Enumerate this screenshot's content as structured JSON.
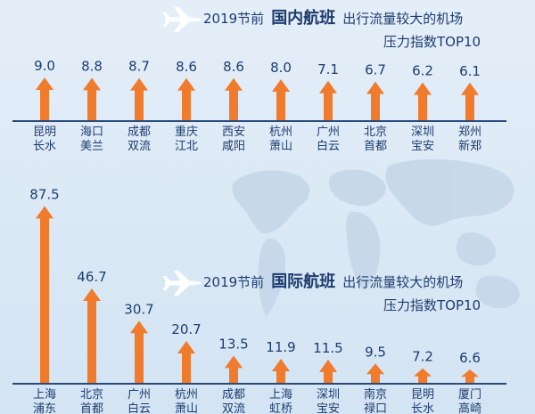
{
  "colors": {
    "arrow": "#f07b2c",
    "text": "#1d3c6e",
    "axis": "#2b4a7c",
    "map": "#c5d7e8",
    "background_top": "#e4eef8",
    "background_bottom": "#d3e4f3"
  },
  "icons": [
    "airplane-icon",
    "airplane-icon"
  ],
  "chart_data": [
    {
      "type": "bar",
      "mark": "arrow",
      "title_prefix": "2019节前",
      "title_highlight": "国内航班",
      "title_suffix": "出行流量较大的机场",
      "title_line2": "压力指数TOP10",
      "categories": [
        "昆明长水",
        "海口美兰",
        "成都双流",
        "重庆江北",
        "西安咸阳",
        "杭州萧山",
        "广州白云",
        "北京首都",
        "深圳宝安",
        "郑州新郑"
      ],
      "values": [
        9.0,
        8.8,
        8.7,
        8.6,
        8.6,
        8.0,
        7.1,
        6.7,
        6.2,
        6.1
      ],
      "xlabel": "",
      "ylabel": ""
    },
    {
      "type": "bar",
      "mark": "arrow",
      "title_prefix": "2019节前",
      "title_highlight": "国际航班",
      "title_suffix": "出行流量较大的机场",
      "title_line2": "压力指数TOP10",
      "categories": [
        "上海浦东",
        "北京首都",
        "广州白云",
        "杭州萧山",
        "成都双流",
        "上海虹桥",
        "深圳宝安",
        "南京禄口",
        "昆明长水",
        "厦门高崎"
      ],
      "values": [
        87.5,
        46.7,
        30.7,
        20.7,
        13.5,
        11.9,
        11.5,
        9.5,
        7.2,
        6.6
      ],
      "xlabel": "",
      "ylabel": ""
    }
  ]
}
